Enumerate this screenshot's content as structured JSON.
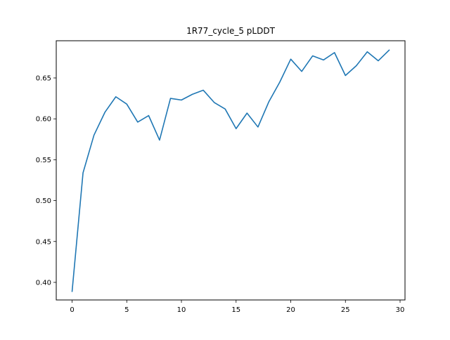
{
  "chart_data": {
    "type": "line",
    "title": "1R77_cycle_5 pLDDT",
    "xlabel": "",
    "ylabel": "",
    "xlim": [
      -1.45,
      30.45
    ],
    "ylim": [
      0.3785,
      0.6955
    ],
    "x_ticks": [
      0,
      5,
      10,
      15,
      20,
      25,
      30
    ],
    "y_ticks": [
      0.4,
      0.45,
      0.5,
      0.55,
      0.6,
      0.65
    ],
    "y_tick_labels": [
      "0.40",
      "0.45",
      "0.50",
      "0.55",
      "0.60",
      "0.65"
    ],
    "grid": false,
    "legend": "none",
    "series": [
      {
        "color": "#1f77b4",
        "x": [
          0,
          1,
          2,
          3,
          4,
          5,
          6,
          7,
          8,
          9,
          10,
          11,
          12,
          13,
          14,
          15,
          16,
          17,
          18,
          19,
          20,
          21,
          22,
          23,
          24,
          25,
          26,
          27,
          28,
          29
        ],
        "y": [
          0.389,
          0.534,
          0.58,
          0.608,
          0.627,
          0.618,
          0.596,
          0.604,
          0.574,
          0.625,
          0.623,
          0.63,
          0.635,
          0.62,
          0.612,
          0.588,
          0.607,
          0.59,
          0.621,
          0.645,
          0.673,
          0.658,
          0.677,
          0.672,
          0.681,
          0.653,
          0.665,
          0.682,
          0.671,
          0.684
        ]
      }
    ]
  }
}
